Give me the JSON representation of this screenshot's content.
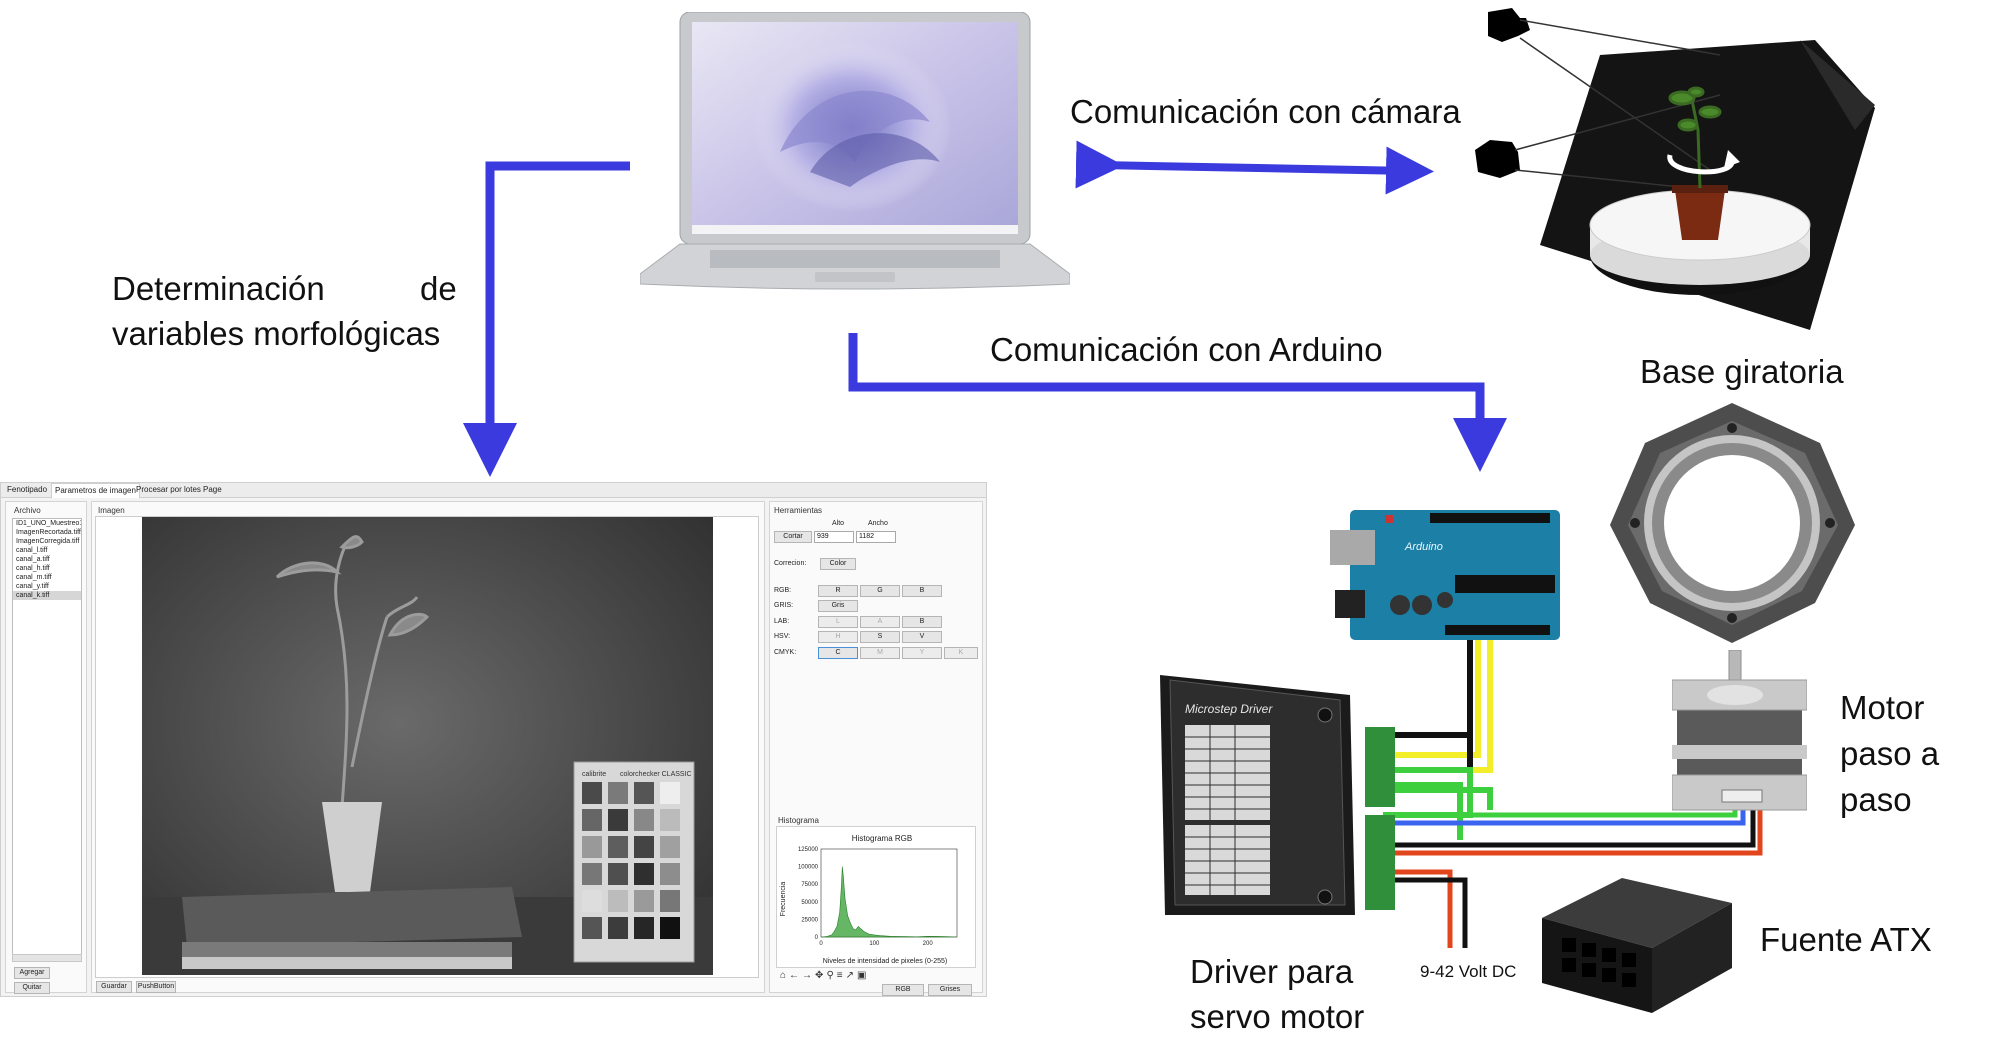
{
  "labels": {
    "camera_comm": "Comunicación con cámara",
    "arduino_comm": "Comunicación con Arduino",
    "morph_line1": "Determinación",
    "morph_line1b": "de",
    "morph_line2": "variables morfológicas",
    "turntable": "Base giratoria",
    "motor_l1": "Motor",
    "motor_l2": "paso a",
    "motor_l3": "paso",
    "driver_l1": "Driver para",
    "driver_l2": "servo motor",
    "psu": "Fuente ATX",
    "voltage": "9-42 Volt DC"
  },
  "colors": {
    "arrow": "#3a3adf",
    "wire_black": "#111111",
    "wire_yellow": "#f2ef2a",
    "wire_green": "#3ecf3e",
    "wire_blue": "#3a64f0",
    "wire_red": "#e0451c",
    "terminal_green": "#2f8f3a",
    "arduino_blue": "#1c7fa6"
  },
  "app": {
    "tabs": [
      "Fenotipado",
      "Parametros de imagen",
      "Procesar por lotes",
      "Page"
    ],
    "archivo_title": "Archivo",
    "files": [
      "ID1_UNO_Muestreo1_R",
      "ImagenRecortada.tiff",
      "ImagenCorregida.tiff",
      "canal_l.tiff",
      "canal_a.tiff",
      "canal_h.tiff",
      "canal_m.tiff",
      "canal_y.tiff",
      "canal_k.tiff"
    ],
    "agregar": "Agregar",
    "quitar": "Quitar",
    "imagen_title": "Imagen",
    "guardar": "Guardar",
    "pushbutton": "PushButton",
    "colorchecker_brand": "calibrite",
    "colorchecker_name": "colorchecker CLASSIC",
    "herramientas_title": "Herramientas",
    "alto_label": "Alto",
    "ancho_label": "Ancho",
    "cortar": "Cortar",
    "alto_value": "939",
    "ancho_value": "1182",
    "correccion_label": "Correcion:",
    "color_btn": "Color",
    "rows": [
      {
        "label": "RGB:",
        "buttons": [
          "R",
          "G",
          "B"
        ]
      },
      {
        "label": "GRIS:",
        "buttons": [
          "Gris"
        ]
      },
      {
        "label": "LAB:",
        "buttons": [
          "L",
          "A",
          "B"
        ]
      },
      {
        "label": "HSV:",
        "buttons": [
          "H",
          "S",
          "V"
        ]
      },
      {
        "label": "CMYK:",
        "buttons": [
          "C",
          "M",
          "Y",
          "K"
        ]
      }
    ],
    "histograma_title": "Histograma",
    "rgb_btn": "RGB",
    "grises_btn": "Grises"
  },
  "chart_data": {
    "type": "area",
    "title": "Histograma RGB",
    "xlabel": "Niveles de intensidad de pixeles (0-255)",
    "ylabel": "Frecuencia",
    "xlim": [
      0,
      255
    ],
    "ylim": [
      0,
      125000
    ],
    "xticks": [
      0,
      100,
      200
    ],
    "yticks": [
      0,
      25000,
      50000,
      75000,
      100000,
      125000
    ],
    "x": [
      0,
      10,
      20,
      25,
      30,
      35,
      38,
      40,
      42,
      45,
      48,
      50,
      55,
      60,
      65,
      70,
      80,
      90,
      100,
      110,
      120,
      130,
      140,
      160,
      180,
      200,
      220,
      240,
      255
    ],
    "series": [
      {
        "values": [
          0,
          500,
          3000,
          8000,
          15000,
          35000,
          70000,
          100000,
          85000,
          55000,
          40000,
          30000,
          20000,
          12000,
          10000,
          15000,
          8000,
          4000,
          3000,
          2000,
          1500,
          1000,
          800,
          500,
          300,
          1000,
          800,
          400,
          0
        ]
      }
    ]
  }
}
